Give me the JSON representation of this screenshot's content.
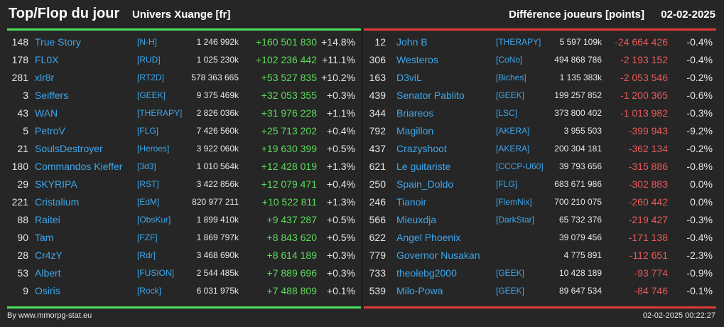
{
  "header": {
    "title": "Top/Flop du jour",
    "subtitle": "Univers Xuange [fr]",
    "metric": "Différence joueurs [points]",
    "date": "02-02-2025"
  },
  "colors": {
    "background": "#262626",
    "gain": "#5bdc5b",
    "loss": "#e85a5a",
    "link": "#3da7ec",
    "accent_green": "#4de05a",
    "accent_red": "#e03b3b"
  },
  "top": [
    {
      "rank": "148",
      "name": "True Story",
      "guild": "[N-H]",
      "points": "1 246 992k",
      "diff": "+160 501 830",
      "pct": "+14.8%"
    },
    {
      "rank": "178",
      "name": "FL0X",
      "guild": "[RUD]",
      "points": "1 025 230k",
      "diff": "+102 236 442",
      "pct": "+11.1%"
    },
    {
      "rank": "281",
      "name": "xlr8r",
      "guild": "[RT2D]",
      "points": "578 363 665",
      "diff": "+53 527 835",
      "pct": "+10.2%"
    },
    {
      "rank": "3",
      "name": "Seiffers",
      "guild": "[GEEK]",
      "points": "9 375 469k",
      "diff": "+32 053 355",
      "pct": "+0.3%"
    },
    {
      "rank": "43",
      "name": "WAN",
      "guild": "[THERAPY]",
      "points": "2 826 036k",
      "diff": "+31 976 228",
      "pct": "+1.1%"
    },
    {
      "rank": "5",
      "name": "PetroV",
      "guild": "[FLG]",
      "points": "7 426 560k",
      "diff": "+25 713 202",
      "pct": "+0.4%"
    },
    {
      "rank": "21",
      "name": "SoulsDestroyer",
      "guild": "[Heroes]",
      "points": "3 922 060k",
      "diff": "+19 630 399",
      "pct": "+0.5%"
    },
    {
      "rank": "180",
      "name": "Commandos Kieffer",
      "guild": "[3d3]",
      "points": "1 010 564k",
      "diff": "+12 428 019",
      "pct": "+1.3%"
    },
    {
      "rank": "29",
      "name": "SKYRIPA",
      "guild": "[RST]",
      "points": "3 422 856k",
      "diff": "+12 079 471",
      "pct": "+0.4%"
    },
    {
      "rank": "221",
      "name": "Cristalium",
      "guild": "[EdM]",
      "points": "820 977 211",
      "diff": "+10 522 811",
      "pct": "+1.3%"
    },
    {
      "rank": "88",
      "name": "Raitei",
      "guild": "[ObsKur]",
      "points": "1 899 410k",
      "diff": "+9 437 287",
      "pct": "+0.5%"
    },
    {
      "rank": "90",
      "name": "Tam",
      "guild": "[FZF]",
      "points": "1 869 797k",
      "diff": "+8 843 620",
      "pct": "+0.5%"
    },
    {
      "rank": "28",
      "name": "Cr4zY",
      "guild": "[Rdr]",
      "points": "3 468 690k",
      "diff": "+8 614 189",
      "pct": "+0.3%"
    },
    {
      "rank": "53",
      "name": "Albert",
      "guild": "[FUSION]",
      "points": "2 544 485k",
      "diff": "+7 889 696",
      "pct": "+0.3%"
    },
    {
      "rank": "9",
      "name": "Osiris",
      "guild": "[Rock]",
      "points": "6 031 975k",
      "diff": "+7 488 809",
      "pct": "+0.1%"
    }
  ],
  "flop": [
    {
      "rank": "12",
      "name": "John B",
      "guild": "[THERAPY]",
      "points": "5 597 109k",
      "diff": "-24 664 426",
      "pct": "-0.4%"
    },
    {
      "rank": "306",
      "name": "Westeros",
      "guild": "[CoNo]",
      "points": "494 868 786",
      "diff": "-2 193 152",
      "pct": "-0.4%"
    },
    {
      "rank": "163",
      "name": "D3viL",
      "guild": "[Biches]",
      "points": "1 135 383k",
      "diff": "-2 053 546",
      "pct": "-0.2%"
    },
    {
      "rank": "439",
      "name": "Senator Pablito",
      "guild": "[GEEK]",
      "points": "199 257 852",
      "diff": "-1 200 365",
      "pct": "-0.6%"
    },
    {
      "rank": "344",
      "name": "Briareos",
      "guild": "[LSC]",
      "points": "373 800 402",
      "diff": "-1 013 982",
      "pct": "-0.3%"
    },
    {
      "rank": "792",
      "name": "Magillon",
      "guild": "[AKERA]",
      "points": "3 955 503",
      "diff": "-399 943",
      "pct": "-9.2%"
    },
    {
      "rank": "437",
      "name": "Crazyshoot",
      "guild": "[AKERA]",
      "points": "200 304 181",
      "diff": "-362 134",
      "pct": "-0.2%"
    },
    {
      "rank": "621",
      "name": "Le guitariste",
      "guild": "[CCCP-U60]",
      "points": "39 793 656",
      "diff": "-315 886",
      "pct": "-0.8%"
    },
    {
      "rank": "250",
      "name": "Spain_Doldo",
      "guild": "[FLG]",
      "points": "683 671 986",
      "diff": "-302 883",
      "pct": "0.0%"
    },
    {
      "rank": "246",
      "name": "Tianoir",
      "guild": "[FlemNix]",
      "points": "700 210 075",
      "diff": "-260 442",
      "pct": "0.0%"
    },
    {
      "rank": "566",
      "name": "Mieuxdja",
      "guild": "[DarkStar]",
      "points": "65 732 376",
      "diff": "-219 427",
      "pct": "-0.3%"
    },
    {
      "rank": "622",
      "name": "Angel Phoenix",
      "guild": "",
      "points": "39 079 456",
      "diff": "-171 138",
      "pct": "-0.4%"
    },
    {
      "rank": "779",
      "name": "Governor Nusakan",
      "guild": "",
      "points": "4 775 891",
      "diff": "-112 651",
      "pct": "-2.3%"
    },
    {
      "rank": "733",
      "name": "theolebg2000",
      "guild": "[GEEK]",
      "points": "10 428 189",
      "diff": "-93 774",
      "pct": "-0.9%"
    },
    {
      "rank": "539",
      "name": "Milo-Powa",
      "guild": "[GEEK]",
      "points": "89 647 534",
      "diff": "-84 746",
      "pct": "-0.1%"
    }
  ],
  "footer": {
    "credit": "By www.mmorpg-stat.eu",
    "timestamp": "02-02-2025 00:22:27"
  }
}
